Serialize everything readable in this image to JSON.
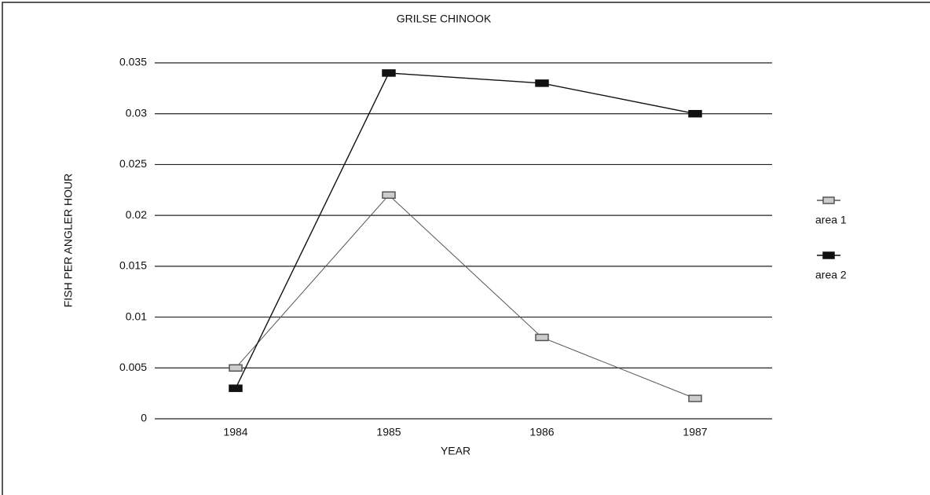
{
  "chart_data": {
    "type": "line",
    "title": "GRILSE CHINOOK",
    "x_label": "YEAR",
    "y_label": "FISH PER ANGLER HOUR",
    "categories": [
      "1984",
      "1985",
      "1986",
      "1987"
    ],
    "series": [
      {
        "name": "area 1",
        "color": "#555555",
        "marker_fill": "#cccccc",
        "values": [
          0.005,
          0.022,
          0.008,
          0.002
        ]
      },
      {
        "name": "area 2",
        "color": "#111111",
        "marker_fill": "#111111",
        "values": [
          0.003,
          0.034,
          0.033,
          0.03
        ]
      }
    ],
    "ylim": [
      0,
      0.035
    ],
    "yticks": [
      0,
      0.005,
      0.01,
      0.015,
      0.02,
      0.025,
      0.03,
      0.035
    ],
    "grid": true,
    "legend": "right"
  }
}
